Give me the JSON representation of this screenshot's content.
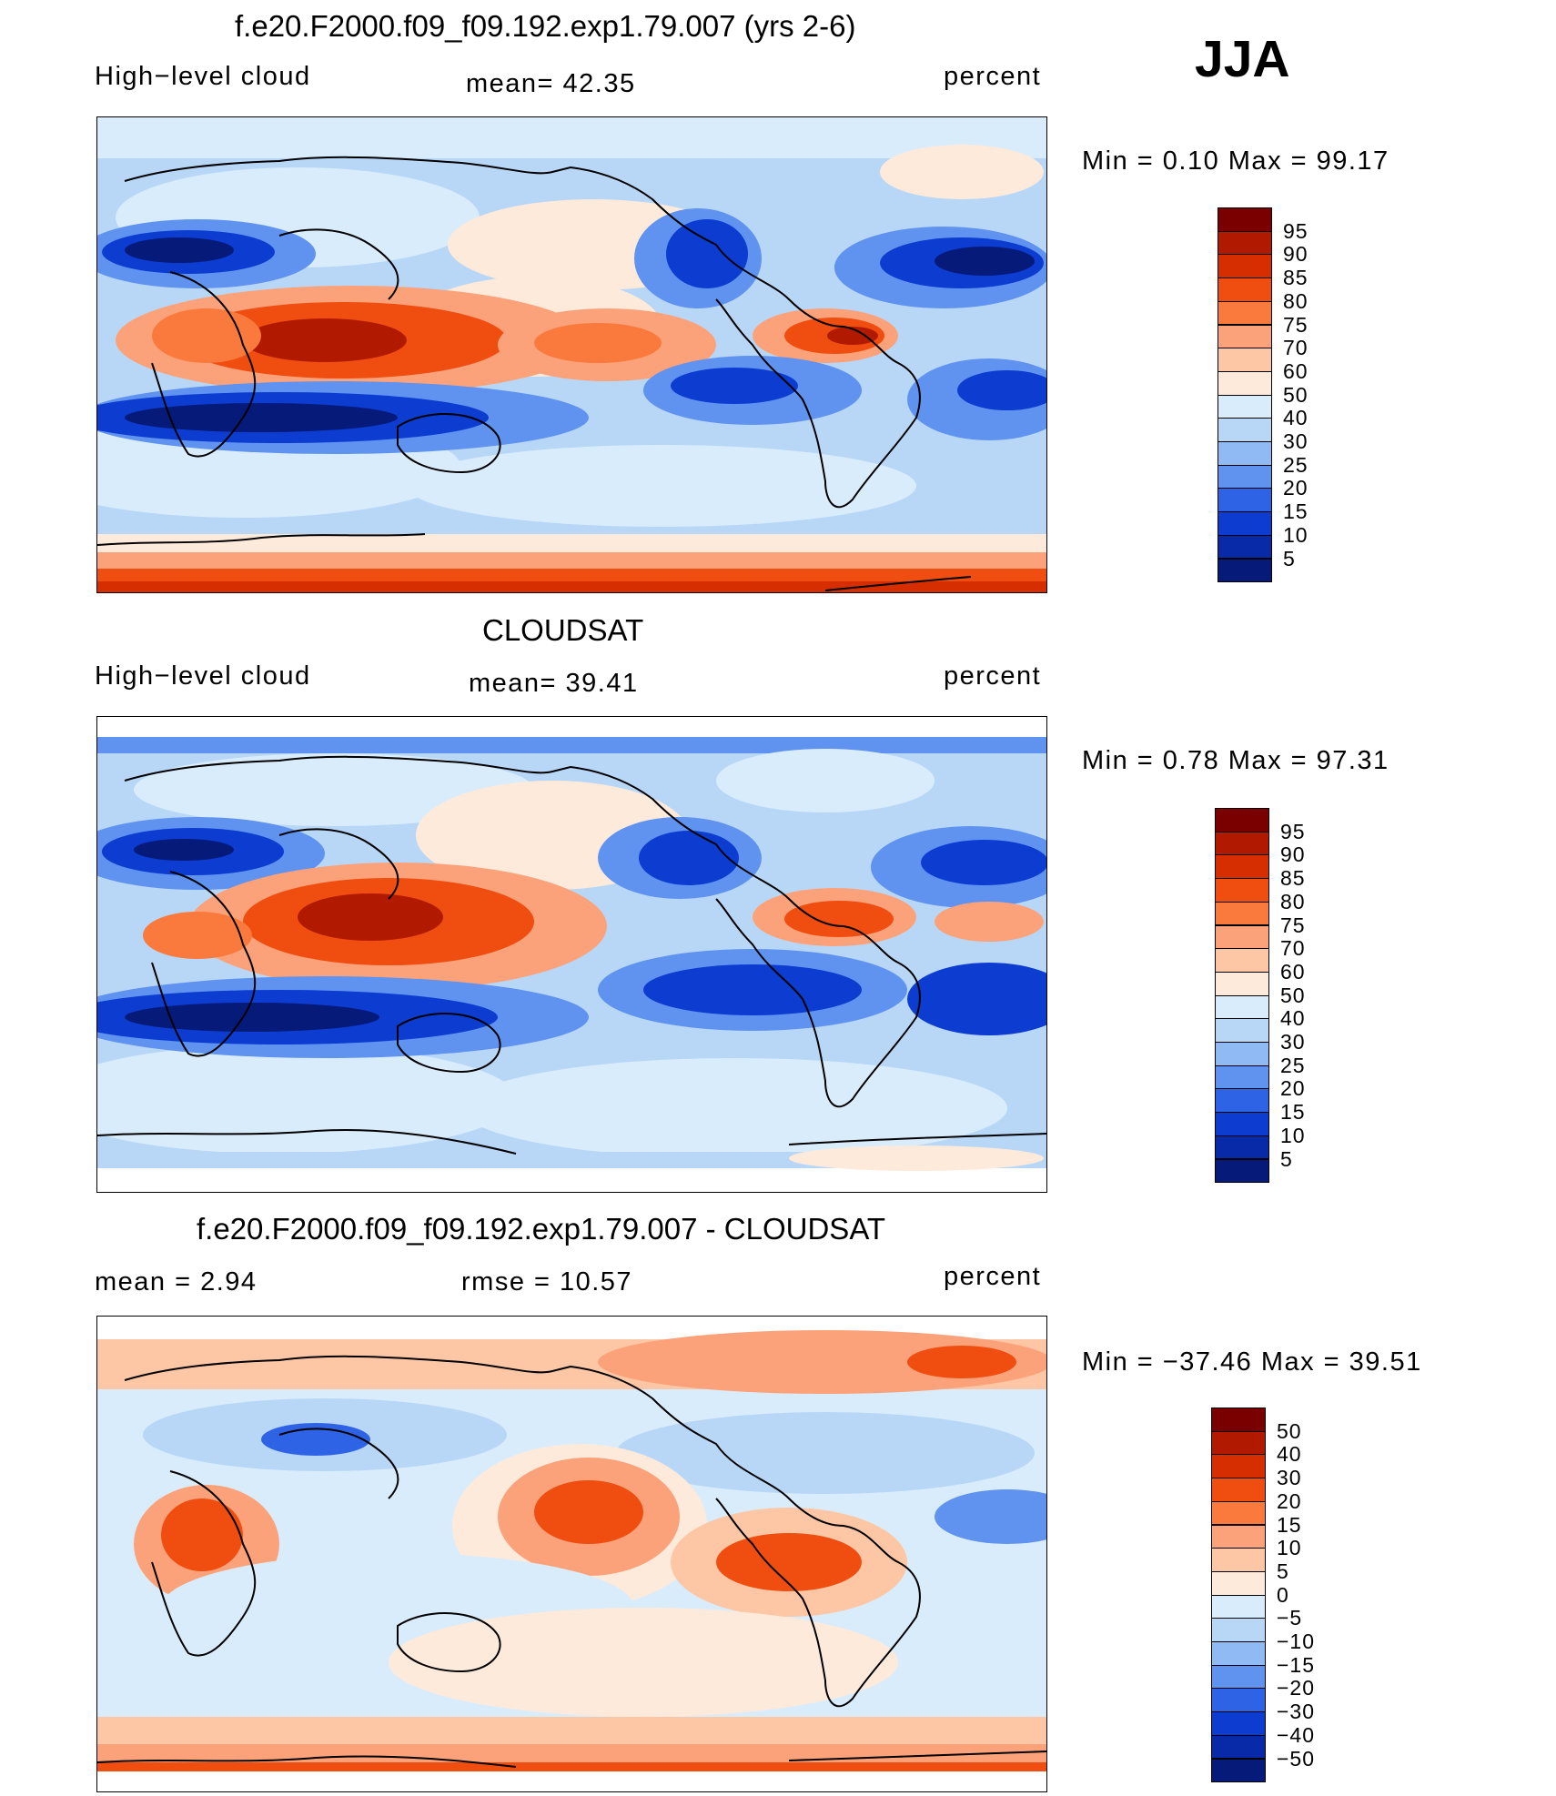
{
  "season": "JJA",
  "panels": [
    {
      "title": "f.e20.F2000.f09_f09.192.exp1.79.007 (yrs 2-6)",
      "left_label": "High−level cloud",
      "center_label": "mean=   42.35",
      "right_label": "percent",
      "minmax": "Min  =     0.10  Max  =     99.17",
      "colorbar": {
        "labels": [
          "95",
          "90",
          "85",
          "80",
          "75",
          "70",
          "60",
          "50",
          "40",
          "30",
          "25",
          "20",
          "15",
          "10",
          "5"
        ],
        "colors": [
          "#7a0000",
          "#b21a00",
          "#d62e00",
          "#f04d10",
          "#fa7a3e",
          "#fca27a",
          "#fdc7a6",
          "#feeadb",
          "#d9ecfb",
          "#b8d7f7",
          "#8fbaf4",
          "#5f93ef",
          "#2f63e6",
          "#0d3cd0",
          "#082aa8",
          "#061a7a"
        ]
      }
    },
    {
      "title": "CLOUDSAT",
      "left_label": "High−level cloud",
      "center_label": "mean=   39.41",
      "right_label": "percent",
      "minmax": "Min  =     0.78  Max  =     97.31",
      "colorbar": {
        "labels": [
          "95",
          "90",
          "85",
          "80",
          "75",
          "70",
          "60",
          "50",
          "40",
          "30",
          "25",
          "20",
          "15",
          "10",
          "5"
        ],
        "colors": [
          "#7a0000",
          "#b21a00",
          "#d62e00",
          "#f04d10",
          "#fa7a3e",
          "#fca27a",
          "#fdc7a6",
          "#feeadb",
          "#d9ecfb",
          "#b8d7f7",
          "#8fbaf4",
          "#5f93ef",
          "#2f63e6",
          "#0d3cd0",
          "#082aa8",
          "#061a7a"
        ]
      }
    },
    {
      "title": "f.e20.F2000.f09_f09.192.exp1.79.007 - CLOUDSAT",
      "left_label": "mean  =     2.94",
      "center_label": "rmse  =     10.57",
      "right_label": "percent",
      "minmax": "Min  =  −37.46  Max  =     39.51",
      "colorbar": {
        "labels": [
          "50",
          "40",
          "30",
          "20",
          "15",
          "10",
          "5",
          "0",
          "−5",
          "−10",
          "−15",
          "−20",
          "−30",
          "−40",
          "−50"
        ],
        "colors": [
          "#7a0000",
          "#b21a00",
          "#d62e00",
          "#f04d10",
          "#fa7a3e",
          "#fca27a",
          "#fdc7a6",
          "#feeadb",
          "#d9ecfb",
          "#b8d7f7",
          "#8fbaf4",
          "#5f93ef",
          "#2f63e6",
          "#0d3cd0",
          "#082aa8",
          "#061a7a"
        ]
      }
    }
  ]
}
